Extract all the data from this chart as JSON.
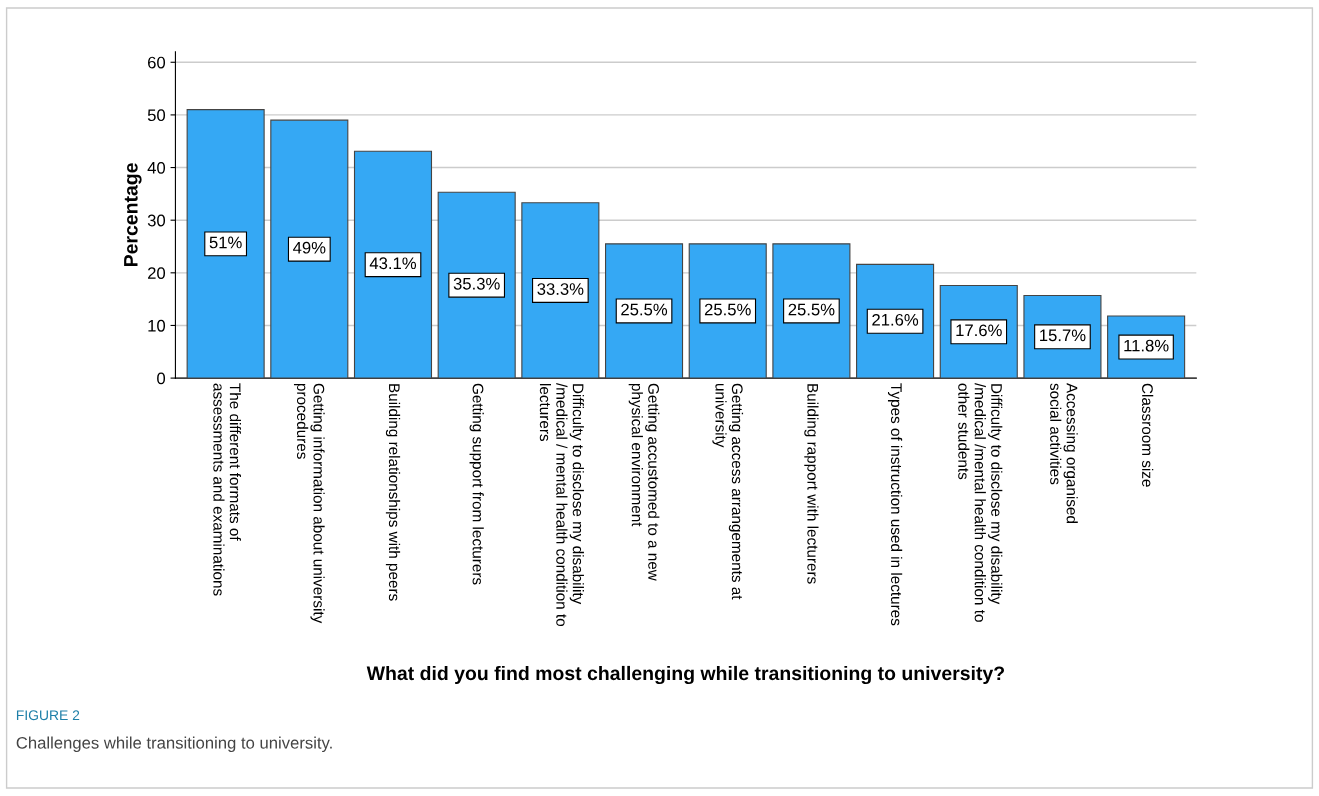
{
  "chart_data": {
    "type": "bar",
    "categories": [
      "The different formats of\nassessments and examinations",
      "Getting information about university\nprocedures",
      "Building relationships with peers",
      "Getting support from lecturers",
      "Difficulty to disclose my disability\n/medical / mental health condition to\nlecturers",
      "Getting accustomed to a new\nphysical environment",
      "Getting access arrangements at\nuniversity",
      "Building rapport with lecturers",
      "Types of instruction used in lectures",
      "Difficulty to disclose my disability\n/medical /mental health condition to\nother students",
      "Accessing organised\nsocial activities",
      "Classroom size"
    ],
    "values": [
      51,
      49,
      43.1,
      35.3,
      33.3,
      25.5,
      25.5,
      25.5,
      21.6,
      17.6,
      15.7,
      11.8
    ],
    "value_labels": [
      "51%",
      "49%",
      "43.1%",
      "35.3%",
      "33.3%",
      "25.5%",
      "25.5%",
      "25.5%",
      "21.6%",
      "17.6%",
      "15.7%",
      "11.8%"
    ],
    "color": "#35a8f4",
    "ylim": [
      0,
      62
    ],
    "yticks": [
      0,
      10,
      20,
      30,
      40,
      50,
      60
    ],
    "ylabel": "Percentage",
    "xlabel": "What did you find most challenging while transitioning to university?",
    "grid": "y",
    "annotations": [
      "FIGURE 2",
      "Challenges while transitioning to university."
    ]
  }
}
